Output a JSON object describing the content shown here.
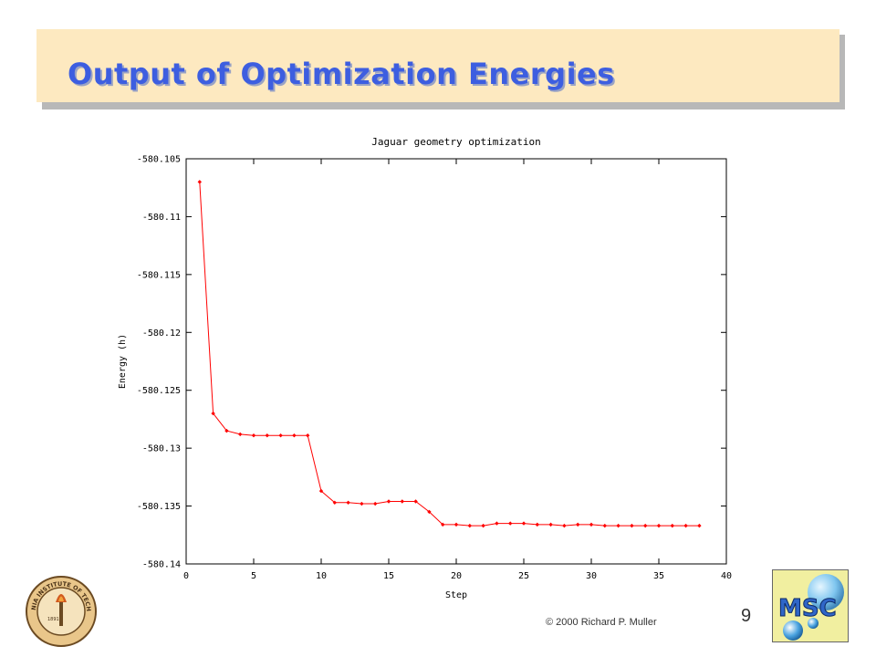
{
  "slide": {
    "title": "Output of Optimization Energies",
    "page_number": "9",
    "copyright": "© 2000 Richard P. Muller",
    "seal_text": "CALIFORNIA INSTITUTE OF TECHNOLOGY",
    "seal_year": "1891",
    "logo_text": "MSC"
  },
  "chart_data": {
    "type": "line",
    "title": "Jaguar geometry optimization",
    "xlabel": "Step",
    "ylabel": "Energy (h)",
    "xlim": [
      0,
      40
    ],
    "ylim": [
      -580.14,
      -580.105
    ],
    "xticks": [
      0,
      5,
      10,
      15,
      20,
      25,
      30,
      35,
      40
    ],
    "yticks": [
      -580.105,
      -580.11,
      -580.115,
      -580.12,
      -580.125,
      -580.13,
      -580.135,
      -580.14
    ],
    "ytick_labels": [
      "-580.105",
      "-580.11",
      "-580.115",
      "-580.12",
      "-580.125",
      "-580.13",
      "-580.135",
      "-580.14"
    ],
    "grid": false,
    "color": "#ff0000",
    "series": [
      {
        "x": [
          1,
          2,
          3,
          4,
          5,
          6,
          7,
          8,
          9,
          10,
          11,
          12,
          13,
          14,
          15,
          16,
          17,
          18,
          19,
          20,
          21,
          22,
          23,
          24,
          25,
          26,
          27,
          28,
          29,
          30,
          31,
          32,
          33,
          34,
          35,
          36,
          37,
          38
        ],
        "y": [
          -580.107,
          -580.127,
          -580.1285,
          -580.1288,
          -580.1289,
          -580.1289,
          -580.1289,
          -580.1289,
          -580.1289,
          -580.1337,
          -580.1347,
          -580.1347,
          -580.1348,
          -580.1348,
          -580.1346,
          -580.1346,
          -580.1346,
          -580.1355,
          -580.1366,
          -580.1366,
          -580.1367,
          -580.1367,
          -580.1365,
          -580.1365,
          -580.1365,
          -580.1366,
          -580.1366,
          -580.1367,
          -580.1366,
          -580.1366,
          -580.1367,
          -580.1367,
          -580.1367,
          -580.1367,
          -580.1367,
          -580.1367,
          -580.1367,
          -580.1367
        ]
      }
    ]
  }
}
